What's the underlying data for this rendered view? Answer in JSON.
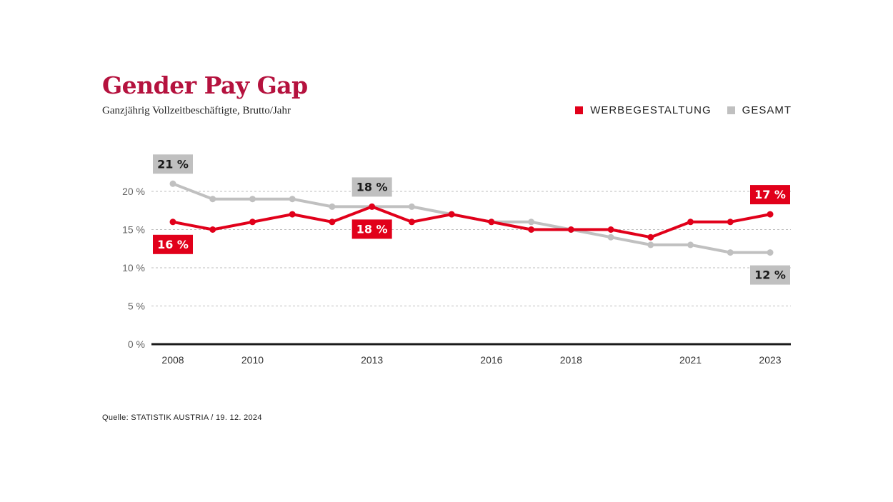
{
  "colors": {
    "title": "#b5123e",
    "werbegestaltung": "#e1001a",
    "gesamt": "#c0c0c0",
    "label_text_dark": "#1a1a1a",
    "label_text_light": "#ffffff"
  },
  "header": {
    "title": "Gender Pay Gap",
    "subtitle": "Ganzjährig Vollzeitbeschäftigte, Brutto/Jahr"
  },
  "legend": {
    "items": [
      {
        "label": "WERBEGESTALTUNG"
      },
      {
        "label": "GESAMT"
      }
    ]
  },
  "footer": {
    "source": "Quelle: STATISTIK AUSTRIA / 19. 12. 2024"
  },
  "chart_data": {
    "type": "line",
    "x": [
      2008,
      2009,
      2010,
      2011,
      2012,
      2013,
      2014,
      2015,
      2016,
      2017,
      2018,
      2019,
      2020,
      2021,
      2022,
      2023
    ],
    "series": [
      {
        "name": "GESAMT",
        "values": [
          21,
          19,
          19,
          19,
          18,
          18,
          18,
          17,
          16,
          16,
          15,
          14,
          13,
          13,
          12,
          12
        ]
      },
      {
        "name": "WERBEGESTALTUNG",
        "values": [
          16,
          15,
          16,
          17,
          16,
          18,
          16,
          17,
          16,
          15,
          15,
          15,
          14,
          16,
          16,
          17
        ]
      }
    ],
    "xticks": [
      2008,
      2010,
      2013,
      2016,
      2018,
      2021,
      2023
    ],
    "xtick_labels": [
      "2008",
      "2010",
      "2013",
      "2016",
      "2018",
      "2021",
      "2023"
    ],
    "yticks": [
      0,
      5,
      10,
      15,
      20
    ],
    "ytick_labels": [
      "0 %",
      "5 %",
      "10 %",
      "15 %",
      "20 %"
    ],
    "ylim": [
      0,
      25
    ],
    "xlim": [
      2008,
      2023
    ],
    "grid": "horizontal-dotted",
    "data_labels": [
      {
        "series": "GESAMT",
        "x": 2008,
        "text": "21 %",
        "position": "above"
      },
      {
        "series": "GESAMT",
        "x": 2013,
        "text": "18 %",
        "position": "above"
      },
      {
        "series": "GESAMT",
        "x": 2023,
        "text": "12 %",
        "position": "below"
      },
      {
        "series": "WERBEGESTALTUNG",
        "x": 2008,
        "text": "16 %",
        "position": "below"
      },
      {
        "series": "WERBEGESTALTUNG",
        "x": 2013,
        "text": "18 %",
        "position": "below"
      },
      {
        "series": "WERBEGESTALTUNG",
        "x": 2023,
        "text": "17 %",
        "position": "above"
      }
    ]
  }
}
